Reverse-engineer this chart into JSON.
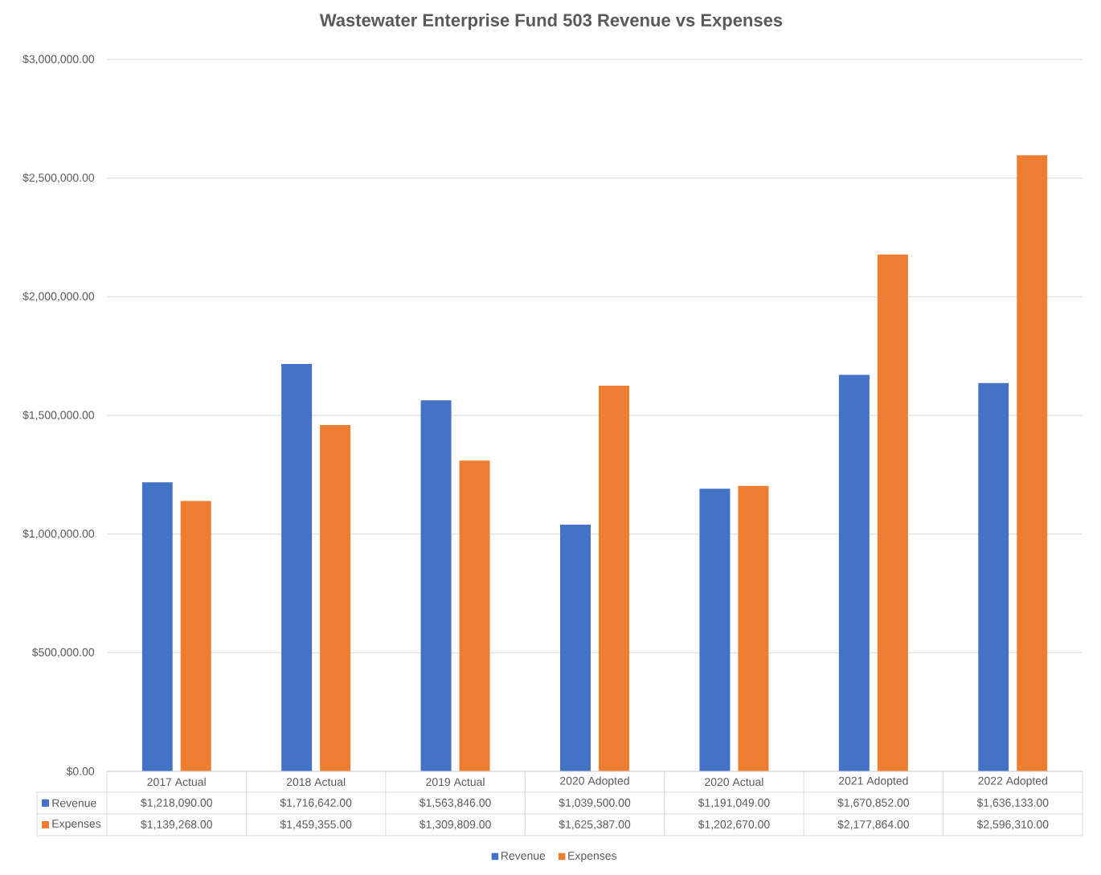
{
  "chart_data": {
    "type": "bar",
    "title": "Wastewater Enterprise Fund 503 Revenue vs Expenses",
    "categories": [
      "2017 Actual",
      "2018 Actual",
      "2019 Actual",
      "2020 Adopted",
      "2020 Actual",
      "2021 Adopted",
      "2022 Adopted"
    ],
    "series": [
      {
        "name": "Revenue",
        "color": "#4472c4",
        "values": [
          1218090,
          1716642,
          1563846,
          1039500,
          1191049,
          1670852,
          1636133
        ],
        "value_labels": [
          "$1,218,090.00",
          "$1,716,642.00",
          "$1,563,846.00",
          "$1,039,500.00",
          "$1,191,049.00",
          "$1,670,852.00",
          "$1,636,133.00"
        ]
      },
      {
        "name": "Expenses",
        "color": "#ed7d31",
        "values": [
          1139268,
          1459355,
          1309809,
          1625387,
          1202670,
          2177864,
          2596310
        ],
        "value_labels": [
          "$1,139,268.00",
          "$1,459,355.00",
          "$1,309,809.00",
          "$1,625,387.00",
          "$1,202,670.00",
          "$2,177,864.00",
          "$2,596,310.00"
        ]
      }
    ],
    "ylim": [
      0,
      3000000
    ],
    "yticks": [
      {
        "value": 0,
        "label": "$0.00"
      },
      {
        "value": 500000,
        "label": "$500,000.00"
      },
      {
        "value": 1000000,
        "label": "$1,000,000.00"
      },
      {
        "value": 1500000,
        "label": "$1,500,000.00"
      },
      {
        "value": 2000000,
        "label": "$2,000,000.00"
      },
      {
        "value": 2500000,
        "label": "$2,500,000.00"
      },
      {
        "value": 3000000,
        "label": "$3,000,000.00"
      }
    ],
    "grid": "y",
    "legend": "bottom"
  }
}
